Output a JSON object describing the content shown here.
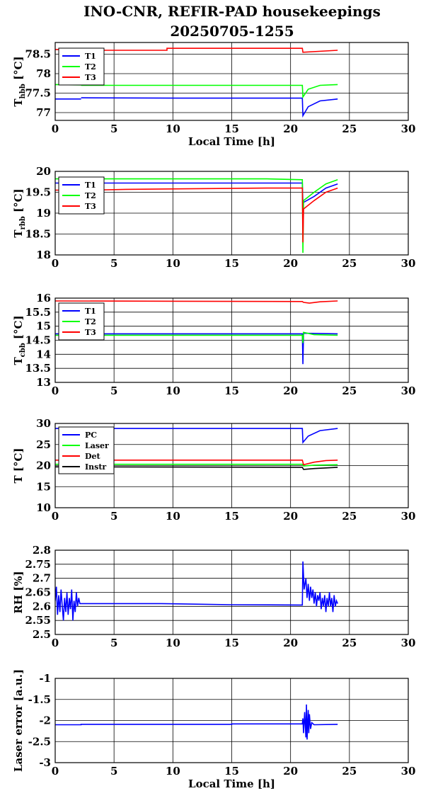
{
  "title_line1": "INO-CNR, REFIR-PAD housekeepings",
  "title_line2": "20250705-1255",
  "chart_data": [
    {
      "type": "line",
      "ylabel_main": "T",
      "ylabel_sub": "hbb",
      "ylabel_unit": " [°C]",
      "xlabel": "Local Time [h]",
      "xlim": [
        0,
        30
      ],
      "ylim": [
        76.8,
        78.8
      ],
      "xticks": [
        0,
        5,
        10,
        15,
        20,
        25,
        30
      ],
      "yticks": [
        77,
        77.5,
        78,
        78.5
      ],
      "ytick_labels": [
        "77",
        "77.5",
        "78",
        "78.5"
      ],
      "series": [
        {
          "name": "T1",
          "color": "#0000ff",
          "points": [
            [
              0,
              77.35
            ],
            [
              2.2,
              77.35
            ],
            [
              null,
              null
            ],
            [
              2.2,
              77.38
            ],
            [
              12,
              77.37
            ],
            [
              12,
              77.37
            ],
            [
              21,
              77.37
            ],
            [
              21.05,
              76.92
            ],
            [
              21.5,
              77.15
            ],
            [
              22.5,
              77.3
            ],
            [
              24,
              77.35
            ]
          ]
        },
        {
          "name": "T2",
          "color": "#00ff00",
          "points": [
            [
              0,
              77.72
            ],
            [
              2.2,
              77.71
            ],
            [
              null,
              null
            ],
            [
              2.2,
              77.7
            ],
            [
              21,
              77.7
            ],
            [
              21.05,
              77.4
            ],
            [
              21.5,
              77.6
            ],
            [
              22.5,
              77.7
            ],
            [
              24,
              77.72
            ]
          ]
        },
        {
          "name": "T3",
          "color": "#ff0000",
          "points": [
            [
              0,
              78.62
            ],
            [
              2.2,
              78.62
            ],
            [
              null,
              null
            ],
            [
              2.2,
              78.6
            ],
            [
              9.5,
              78.6
            ],
            [
              9.5,
              78.65
            ],
            [
              21,
              78.65
            ],
            [
              21.05,
              78.55
            ],
            [
              24,
              78.6
            ]
          ]
        }
      ]
    },
    {
      "type": "line",
      "ylabel_main": "T",
      "ylabel_sub": "rbb",
      "ylabel_unit": " [°C]",
      "xlabel": "",
      "xlim": [
        0,
        30
      ],
      "ylim": [
        18,
        20
      ],
      "xticks": [
        0,
        5,
        10,
        15,
        20,
        25,
        30
      ],
      "yticks": [
        18,
        18.5,
        19,
        19.5,
        20
      ],
      "ytick_labels": [
        "18",
        "18.5",
        "19",
        "19.5",
        "20"
      ],
      "series": [
        {
          "name": "T1",
          "color": "#0000ff",
          "points": [
            [
              0,
              19.72
            ],
            [
              18,
              19.72
            ],
            [
              21,
              19.72
            ],
            [
              21.05,
              19.25
            ],
            [
              22,
              19.4
            ],
            [
              23,
              19.6
            ],
            [
              24,
              19.7
            ]
          ]
        },
        {
          "name": "T2",
          "color": "#00ff00",
          "points": [
            [
              0,
              19.82
            ],
            [
              18,
              19.82
            ],
            [
              21,
              19.8
            ],
            [
              21.05,
              18.05
            ],
            [
              21.1,
              19.3
            ],
            [
              22,
              19.5
            ],
            [
              23,
              19.7
            ],
            [
              24,
              19.8
            ]
          ]
        },
        {
          "name": "T3",
          "color": "#ff0000",
          "points": [
            [
              0,
              19.55
            ],
            [
              3,
              19.55
            ],
            [
              6,
              19.57
            ],
            [
              18,
              19.6
            ],
            [
              21,
              19.6
            ],
            [
              21.05,
              18.3
            ],
            [
              21.1,
              19.1
            ],
            [
              22,
              19.3
            ],
            [
              23,
              19.5
            ],
            [
              24,
              19.6
            ]
          ]
        }
      ]
    },
    {
      "type": "line",
      "ylabel_main": "T",
      "ylabel_sub": "cbb",
      "ylabel_unit": " [°C]",
      "xlabel": "",
      "xlim": [
        0,
        30
      ],
      "ylim": [
        13,
        16
      ],
      "xticks": [
        0,
        5,
        10,
        15,
        20,
        25,
        30
      ],
      "yticks": [
        13,
        13.5,
        14,
        14.5,
        15,
        15.5,
        16
      ],
      "ytick_labels": [
        "13",
        "13.5",
        "14",
        "14.5",
        "15",
        "15.5",
        "16"
      ],
      "series": [
        {
          "name": "T1",
          "color": "#0000ff",
          "points": [
            [
              0,
              14.73
            ],
            [
              21,
              14.73
            ],
            [
              21.05,
              13.65
            ],
            [
              21.1,
              14.75
            ],
            [
              24,
              14.73
            ]
          ]
        },
        {
          "name": "T2",
          "color": "#00ff00",
          "points": [
            [
              0,
              14.68
            ],
            [
              21,
              14.68
            ],
            [
              21.05,
              14.4
            ],
            [
              21.1,
              14.78
            ],
            [
              22,
              14.7
            ],
            [
              24,
              14.68
            ]
          ]
        },
        {
          "name": "T3",
          "color": "#ff0000",
          "points": [
            [
              0,
              15.9
            ],
            [
              21,
              15.88
            ],
            [
              21.1,
              15.85
            ],
            [
              21.6,
              15.82
            ],
            [
              22.5,
              15.87
            ],
            [
              24,
              15.9
            ]
          ]
        }
      ]
    },
    {
      "type": "line",
      "ylabel_main": "T [°C]",
      "ylabel_sub": "",
      "ylabel_unit": "",
      "xlabel": "",
      "xlim": [
        0,
        30
      ],
      "ylim": [
        10,
        30
      ],
      "xticks": [
        0,
        5,
        10,
        15,
        20,
        25,
        30
      ],
      "yticks": [
        10,
        15,
        20,
        25,
        30
      ],
      "ytick_labels": [
        "10",
        "15",
        "20",
        "25",
        "30"
      ],
      "series": [
        {
          "name": "PC",
          "color": "#0000ff",
          "points": [
            [
              0,
              28.8
            ],
            [
              21,
              28.8
            ],
            [
              21.05,
              25.5
            ],
            [
              21.5,
              27
            ],
            [
              22.5,
              28.3
            ],
            [
              24,
              28.8
            ]
          ]
        },
        {
          "name": "Laser",
          "color": "#00ff00",
          "points": [
            [
              0,
              20.3
            ],
            [
              21,
              20.3
            ],
            [
              21.1,
              19.9
            ],
            [
              22,
              20.1
            ],
            [
              24,
              20.2
            ]
          ]
        },
        {
          "name": "Det",
          "color": "#ff0000",
          "points": [
            [
              0,
              21.3
            ],
            [
              21,
              21.3
            ],
            [
              21.1,
              20.2
            ],
            [
              22,
              20.8
            ],
            [
              23,
              21.2
            ],
            [
              24,
              21.3
            ]
          ]
        },
        {
          "name": "Instr",
          "color": "#000000",
          "points": [
            [
              0,
              19.7
            ],
            [
              21,
              19.6
            ],
            [
              21.1,
              19.1
            ],
            [
              22,
              19.3
            ],
            [
              24,
              19.6
            ]
          ]
        }
      ]
    },
    {
      "type": "line",
      "ylabel_main": "RH [%]",
      "ylabel_sub": "",
      "ylabel_unit": "",
      "xlabel": "",
      "xlim": [
        0,
        30
      ],
      "ylim": [
        2.5,
        2.8
      ],
      "xticks": [
        0,
        5,
        10,
        15,
        20,
        25,
        30
      ],
      "yticks": [
        2.5,
        2.55,
        2.6,
        2.65,
        2.7,
        2.75,
        2.8
      ],
      "ytick_labels": [
        "2.5",
        "2.55",
        "2.6",
        "2.65",
        "2.7",
        "2.75",
        "2.8"
      ],
      "series": [
        {
          "name": "",
          "color": "#0000ff",
          "points": [
            [
              0,
              2.62
            ],
            [
              0.1,
              2.67
            ],
            [
              0.2,
              2.57
            ],
            [
              0.3,
              2.64
            ],
            [
              0.4,
              2.58
            ],
            [
              0.5,
              2.66
            ],
            [
              0.6,
              2.6
            ],
            [
              0.7,
              2.55
            ],
            [
              0.8,
              2.63
            ],
            [
              0.9,
              2.58
            ],
            [
              1.0,
              2.65
            ],
            [
              1.1,
              2.57
            ],
            [
              1.2,
              2.63
            ],
            [
              1.3,
              2.59
            ],
            [
              1.4,
              2.66
            ],
            [
              1.5,
              2.55
            ],
            [
              1.6,
              2.62
            ],
            [
              1.7,
              2.58
            ],
            [
              1.8,
              2.65
            ],
            [
              1.9,
              2.6
            ],
            [
              2.0,
              2.63
            ],
            [
              2.1,
              2.61
            ],
            [
              2.2,
              2.61
            ],
            [
              9,
              2.61
            ],
            [
              15,
              2.606
            ],
            [
              21,
              2.605
            ],
            [
              21.05,
              2.76
            ],
            [
              21.15,
              2.66
            ],
            [
              21.3,
              2.7
            ],
            [
              21.4,
              2.63
            ],
            [
              21.5,
              2.68
            ],
            [
              21.6,
              2.62
            ],
            [
              21.7,
              2.67
            ],
            [
              21.8,
              2.63
            ],
            [
              21.9,
              2.66
            ],
            [
              22.0,
              2.61
            ],
            [
              22.1,
              2.65
            ],
            [
              22.2,
              2.6
            ],
            [
              22.3,
              2.64
            ],
            [
              22.4,
              2.62
            ],
            [
              22.5,
              2.65
            ],
            [
              22.6,
              2.59
            ],
            [
              22.7,
              2.63
            ],
            [
              22.8,
              2.6
            ],
            [
              22.9,
              2.64
            ],
            [
              23.0,
              2.58
            ],
            [
              23.1,
              2.63
            ],
            [
              23.2,
              2.6
            ],
            [
              23.3,
              2.65
            ],
            [
              23.4,
              2.6
            ],
            [
              23.5,
              2.63
            ],
            [
              23.6,
              2.58
            ],
            [
              23.7,
              2.64
            ],
            [
              23.8,
              2.6
            ],
            [
              23.9,
              2.62
            ],
            [
              24,
              2.61
            ]
          ]
        }
      ]
    },
    {
      "type": "line",
      "ylabel_main": "Laser error [a.u.]",
      "ylabel_sub": "",
      "ylabel_unit": "",
      "xlabel": "Local Time [h]",
      "xlim": [
        0,
        30
      ],
      "ylim": [
        -3,
        -1
      ],
      "xticks": [
        0,
        5,
        10,
        15,
        20,
        25,
        30
      ],
      "yticks": [
        -3,
        -2.5,
        -2,
        -1.5,
        -1
      ],
      "ytick_labels": [
        "-3",
        "-2.5",
        "-2",
        "-1.5",
        "-1"
      ],
      "series": [
        {
          "name": "",
          "color": "#0000ff",
          "points": [
            [
              0,
              -2.1
            ],
            [
              2.2,
              -2.1
            ],
            [
              2.2,
              -2.09
            ],
            [
              15,
              -2.09
            ],
            [
              15,
              -2.08
            ],
            [
              21,
              -2.08
            ],
            [
              21.05,
              -1.95
            ],
            [
              21.1,
              -2.3
            ],
            [
              21.2,
              -1.8
            ],
            [
              21.3,
              -2.4
            ],
            [
              21.35,
              -1.62
            ],
            [
              21.4,
              -2.45
            ],
            [
              21.5,
              -1.75
            ],
            [
              21.55,
              -2.3
            ],
            [
              21.6,
              -1.85
            ],
            [
              21.7,
              -2.2
            ],
            [
              21.8,
              -2.05
            ],
            [
              22,
              -2.1
            ],
            [
              24,
              -2.09
            ]
          ]
        }
      ]
    }
  ]
}
